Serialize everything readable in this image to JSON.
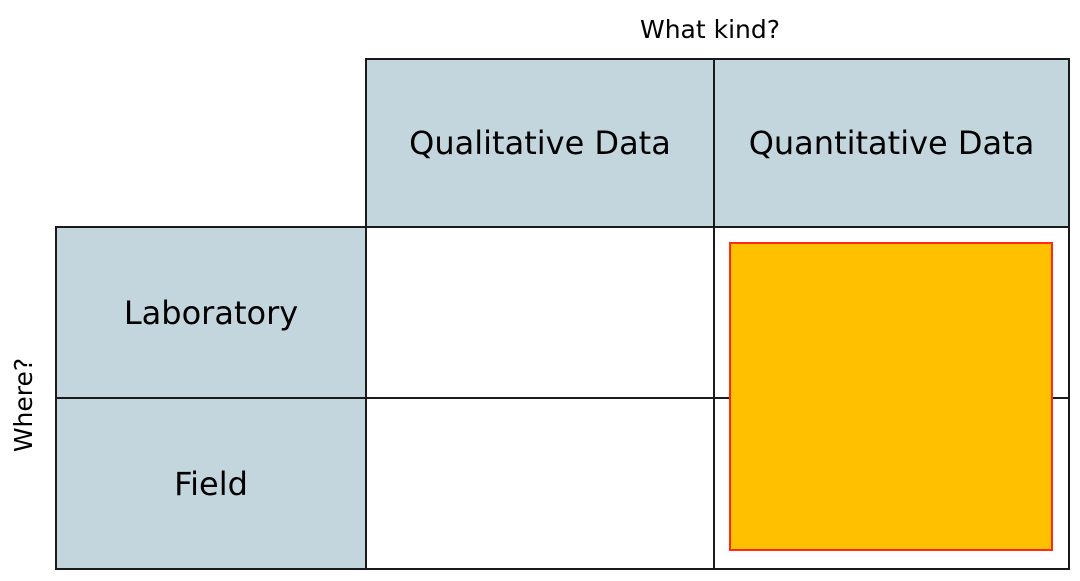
{
  "axes": {
    "columns_label": "What kind?",
    "rows_label": "Where?"
  },
  "columns": [
    "Qualitative Data",
    "Quantitative Data"
  ],
  "rows": [
    "Laboratory",
    "Field"
  ],
  "colors": {
    "header_fill": "#c3d6dd",
    "highlight_fill": "#ffc000",
    "highlight_border": "#ff2a1a",
    "grid_line": "#1a1a1a"
  },
  "highlight": {
    "column": "Quantitative Data",
    "rows": [
      "Laboratory",
      "Field"
    ]
  }
}
